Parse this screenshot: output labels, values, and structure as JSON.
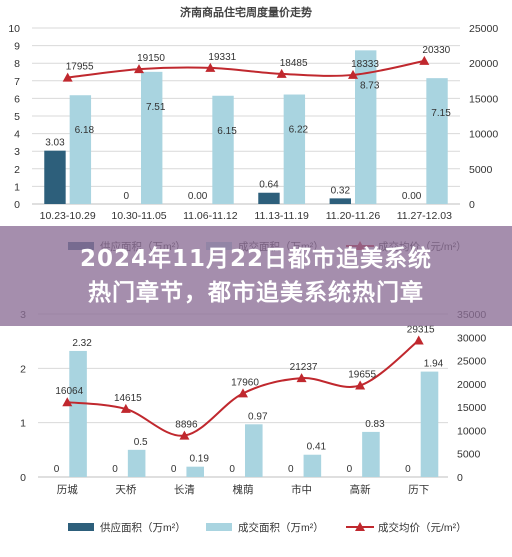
{
  "overlay": {
    "line1": "2024年11月22日都市追美系统",
    "line2": "热门章节，都市追美系统热门章"
  },
  "colors": {
    "supply": "#2d5f7b",
    "traded": "#a9d4e0",
    "price": "#c0282e",
    "grid": "#d9d9d9",
    "text": "#333333"
  },
  "chart_data": [
    {
      "type": "bar",
      "title": "济南商品住宅周度量价走势",
      "categories": [
        "10.23-10.29",
        "10.30-11.05",
        "11.06-11.12",
        "11.13-11.19",
        "11.20-11.26",
        "11.27-12.03"
      ],
      "series": [
        {
          "name": "供应面积（万m²）",
          "type": "bar",
          "axis": "left",
          "values": [
            3.03,
            0,
            0.0,
            0.64,
            0.32,
            0.0
          ],
          "labels": [
            "3.03",
            "0",
            "0.00",
            "0.64",
            "0.32",
            "0.00"
          ]
        },
        {
          "name": "成交面积（万m²）",
          "type": "bar",
          "axis": "left",
          "values": [
            6.18,
            7.51,
            6.15,
            6.22,
            8.73,
            7.15
          ],
          "labels": [
            "6.18",
            "7.51",
            "6.15",
            "6.22",
            "8.73",
            "7.15"
          ]
        },
        {
          "name": "成交均价（元/m²）",
          "type": "line",
          "axis": "right",
          "values": [
            17955,
            19150,
            19331,
            18485,
            18333,
            20330
          ],
          "labels": [
            "17955",
            "19150",
            "19331",
            "18485",
            "18333",
            "20330"
          ]
        }
      ],
      "ylim_left": [
        0,
        10
      ],
      "yticks_left": [
        "0",
        "1",
        "2",
        "3",
        "4",
        "5",
        "6",
        "7",
        "8",
        "9",
        "10"
      ],
      "ylim_right": [
        0,
        25000
      ],
      "yticks_right": [
        "0",
        "5000",
        "10000",
        "15000",
        "20000",
        "25000"
      ],
      "legend_visible": [
        "供应面积（万m²）",
        "成交面积（万m²）",
        "成交均价（元/m²）"
      ],
      "legend_position": "bottom"
    },
    {
      "type": "bar",
      "title": "",
      "categories": [
        "历城",
        "天桥",
        "长清",
        "槐荫",
        "市中",
        "高新",
        "历下"
      ],
      "series": [
        {
          "name": "供应面积（万m²）",
          "type": "bar",
          "axis": "left",
          "values": [
            0,
            0,
            0,
            0,
            0,
            0,
            0
          ],
          "labels": [
            "0",
            "0",
            "0",
            "0",
            "0",
            "0",
            "0"
          ]
        },
        {
          "name": "成交面积（万m²）",
          "type": "bar",
          "axis": "left",
          "values": [
            2.32,
            0.5,
            0.19,
            0.97,
            0.41,
            0.83,
            1.94
          ],
          "labels": [
            "2.32",
            "0.5",
            "0.19",
            "0.97",
            "0.41",
            "0.83",
            "1.94"
          ]
        },
        {
          "name": "成交均价（元/m²）",
          "type": "line",
          "axis": "right",
          "values": [
            16064,
            14615,
            8896,
            17960,
            21237,
            19655,
            29315
          ],
          "labels": [
            "16064",
            "14615",
            "8896",
            "17960",
            "21237",
            "19655",
            "29315"
          ]
        }
      ],
      "ylim_left": [
        0,
        3
      ],
      "yticks_left": [
        "0",
        "1",
        "2",
        "3"
      ],
      "ylim_right": [
        0,
        35000
      ],
      "yticks_right": [
        "0",
        "5000",
        "10000",
        "15000",
        "20000",
        "25000",
        "30000",
        "35000"
      ],
      "legend": [
        "供应面积（万m²）",
        "成交面积（万m²）",
        "成交均价（元/m²）"
      ],
      "legend_position": "bottom"
    }
  ]
}
